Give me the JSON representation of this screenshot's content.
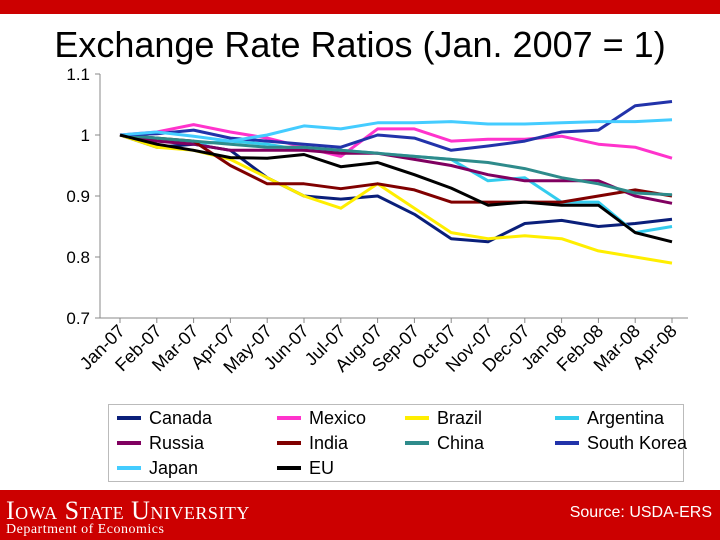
{
  "title": "Exchange Rate Ratios (Jan. 2007 = 1)",
  "footer": {
    "university": "Iowa State University",
    "department": "Department of Economics",
    "source": "Source: USDA-ERS",
    "bar_color": "#cc0000"
  },
  "chart_data": {
    "type": "line",
    "title": "Exchange Rate Ratios (Jan. 2007 = 1)",
    "xlabel": "",
    "ylabel": "",
    "ylim": [
      0.7,
      1.1
    ],
    "yticks": [
      "0.7",
      "0.8",
      "0.9",
      "1",
      "1.1"
    ],
    "grid": false,
    "legend_placement": "bottom",
    "categories": [
      "Jan-07",
      "Feb-07",
      "Mar-07",
      "Apr-07",
      "May-07",
      "Jun-07",
      "Jul-07",
      "Aug-07",
      "Sep-07",
      "Oct-07",
      "Nov-07",
      "Dec-07",
      "Jan-08",
      "Feb-08",
      "Mar-08",
      "Apr-08"
    ],
    "series": [
      {
        "name": "Canada",
        "color": "#0a1f7a",
        "values": [
          1.0,
          0.98,
          0.985,
          0.975,
          0.93,
          0.9,
          0.895,
          0.9,
          0.87,
          0.83,
          0.825,
          0.855,
          0.86,
          0.85,
          0.855,
          0.862
        ]
      },
      {
        "name": "Mexico",
        "color": "#ff33cc",
        "values": [
          1.0,
          1.005,
          1.017,
          1.005,
          0.995,
          0.98,
          0.965,
          1.01,
          1.01,
          0.99,
          0.993,
          0.993,
          0.998,
          0.985,
          0.98,
          0.962
        ]
      },
      {
        "name": "Brazil",
        "color": "#ffee00",
        "values": [
          1.0,
          0.98,
          0.975,
          0.96,
          0.93,
          0.9,
          0.88,
          0.92,
          0.88,
          0.84,
          0.83,
          0.835,
          0.83,
          0.81,
          0.8,
          0.79
        ]
      },
      {
        "name": "Argentina",
        "color": "#33ccee",
        "values": [
          1.0,
          0.995,
          0.985,
          0.99,
          0.985,
          0.975,
          0.975,
          0.97,
          0.965,
          0.96,
          0.925,
          0.93,
          0.89,
          0.89,
          0.84,
          0.85
        ]
      },
      {
        "name": "Russia",
        "color": "#800060",
        "values": [
          1.0,
          0.99,
          0.985,
          0.975,
          0.975,
          0.975,
          0.97,
          0.97,
          0.96,
          0.95,
          0.935,
          0.925,
          0.925,
          0.925,
          0.9,
          0.888
        ]
      },
      {
        "name": "India",
        "color": "#800000",
        "values": [
          1.0,
          0.995,
          0.99,
          0.95,
          0.92,
          0.92,
          0.912,
          0.92,
          0.91,
          0.89,
          0.89,
          0.89,
          0.89,
          0.9,
          0.91,
          0.9
        ]
      },
      {
        "name": "China",
        "color": "#2e8b8b",
        "values": [
          1.0,
          0.995,
          0.99,
          0.985,
          0.98,
          0.98,
          0.975,
          0.97,
          0.965,
          0.96,
          0.955,
          0.945,
          0.93,
          0.92,
          0.905,
          0.902
        ]
      },
      {
        "name": "South Korea",
        "color": "#2233aa",
        "values": [
          1.0,
          1.002,
          1.008,
          0.995,
          0.99,
          0.985,
          0.98,
          1.0,
          0.995,
          0.975,
          0.982,
          0.99,
          1.005,
          1.008,
          1.048,
          1.055
        ]
      },
      {
        "name": "Japan",
        "color": "#44ccff",
        "values": [
          1.0,
          1.005,
          0.998,
          0.99,
          1.0,
          1.015,
          1.01,
          1.02,
          1.02,
          1.022,
          1.018,
          1.018,
          1.02,
          1.022,
          1.022,
          1.025
        ]
      },
      {
        "name": "EU",
        "color": "#000000",
        "values": [
          1.0,
          0.985,
          0.975,
          0.963,
          0.962,
          0.968,
          0.948,
          0.955,
          0.935,
          0.913,
          0.885,
          0.89,
          0.885,
          0.885,
          0.84,
          0.825
        ]
      }
    ]
  }
}
